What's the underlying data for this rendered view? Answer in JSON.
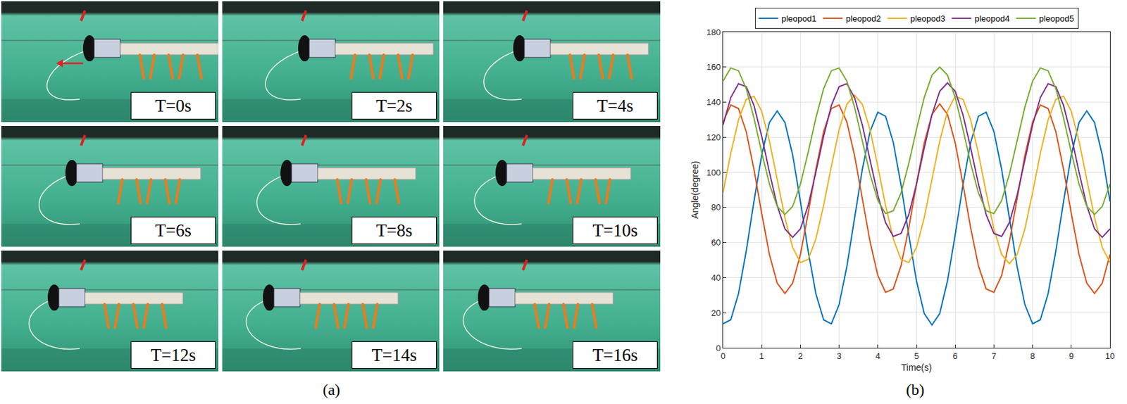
{
  "panel_a": {
    "label": "(a)",
    "frames": [
      "T=0s",
      "T=2s",
      "T=4s",
      "T=6s",
      "T=8s",
      "T=10s",
      "T=12s",
      "T=14s",
      "T=16s"
    ]
  },
  "panel_b": {
    "label": "(b)"
  },
  "chart_data": {
    "type": "line",
    "x_label": "Time(s)",
    "y_label": "Angle(degree)",
    "x": [
      0,
      0.2,
      0.4,
      0.6,
      0.8,
      1,
      1.2,
      1.4,
      1.6,
      1.8,
      2,
      2.2,
      2.4,
      2.6,
      2.8,
      3,
      3.2,
      3.4,
      3.6,
      3.8,
      4,
      4.2,
      4.4,
      4.6,
      4.8,
      5,
      5.2,
      5.4,
      5.6,
      5.8,
      6,
      6.2,
      6.4,
      6.6,
      6.8,
      7,
      7.2,
      7.4,
      7.6,
      7.8,
      8,
      8.2,
      8.4,
      8.6,
      8.8,
      9,
      9.2,
      9.4,
      9.6,
      9.8,
      10
    ],
    "series": [
      {
        "name": "pleopod1",
        "color": "#0072BD",
        "values": [
          13.7,
          16,
          30.9,
          55.2,
          83.5,
          109.9,
          128.4,
          135,
          128.4,
          109.9,
          83.5,
          55.2,
          30.9,
          16,
          13.7,
          24.7,
          46.3,
          74,
          101.7,
          123.3,
          134.3,
          132,
          117.1,
          92.8,
          64.5,
          38.1,
          19.6,
          13,
          19.6,
          38.1,
          64.5,
          92.8,
          117.1,
          132,
          134.3,
          123.3,
          101.7,
          74,
          46.3,
          24.7,
          13.7,
          16,
          30.9,
          55.2,
          83.5,
          109.9,
          128.4,
          135,
          128.4,
          109.9,
          83.5
        ]
      },
      {
        "name": "pleopod2",
        "color": "#D95319",
        "values": [
          128.7,
          138.4,
          136.4,
          123.2,
          101.7,
          76.6,
          53.2,
          36.9,
          31,
          36.9,
          53.2,
          76.6,
          101.7,
          123.2,
          136.4,
          138.4,
          128.7,
          109.5,
          85,
          60.5,
          41.3,
          31.6,
          33.6,
          46.8,
          68.3,
          93.4,
          116.8,
          133.1,
          139,
          133.1,
          116.8,
          93.4,
          68.3,
          46.8,
          33.6,
          31.6,
          41.3,
          60.5,
          85,
          109.5,
          128.7,
          138.4,
          136.4,
          123.2,
          101.7,
          76.6,
          53.2,
          36.9,
          31,
          36.9,
          53.2
        ]
      },
      {
        "name": "pleopod3",
        "color": "#EDB120",
        "values": [
          88.5,
          110.8,
          129.9,
          141.6,
          143.4,
          134.8,
          117.8,
          96,
          74.2,
          57.2,
          48.6,
          50.4,
          62.1,
          81.2,
          103.5,
          124.2,
          138.8,
          144,
          138.8,
          124.2,
          103.5,
          81.2,
          62.1,
          50.4,
          48.6,
          57.2,
          74.2,
          96,
          117.8,
          134.8,
          143.4,
          141.6,
          129.9,
          110.8,
          88.5,
          67.8,
          53.2,
          48,
          53.2,
          67.8,
          88.5,
          110.8,
          129.9,
          141.6,
          143.4,
          134.8,
          117.8,
          96,
          74.2,
          57.2,
          48.6
        ]
      },
      {
        "name": "pleopod4",
        "color": "#7E2F8E",
        "values": [
          127,
          142.6,
          150.5,
          148.8,
          138.1,
          120.6,
          100.1,
          81.1,
          67.8,
          63,
          67.8,
          81.1,
          100.1,
          120.6,
          138.1,
          148.8,
          150.5,
          142.6,
          127,
          107,
          87,
          71.4,
          63.5,
          65.2,
          75.9,
          93.4,
          113.9,
          132.9,
          146.2,
          151,
          146.2,
          132.9,
          113.9,
          93.4,
          75.9,
          65.2,
          63.5,
          71.4,
          87,
          107,
          127,
          142.6,
          150.5,
          148.8,
          138.1,
          120.6,
          100.1,
          81.1,
          67.8,
          63,
          67.8
        ]
      },
      {
        "name": "pleopod5",
        "color": "#77AC30",
        "values": [
          152,
          159.5,
          157.9,
          147.7,
          131,
          111.4,
          93.3,
          80.6,
          76,
          80.6,
          93.3,
          111.4,
          131,
          147.7,
          157.9,
          159.5,
          152,
          137.1,
          118,
          98.9,
          84,
          76.5,
          78.1,
          88.3,
          105,
          124.6,
          142.7,
          155.4,
          160,
          155.4,
          142.7,
          124.6,
          105,
          88.3,
          78.1,
          76.5,
          84,
          98.9,
          118,
          137.1,
          152,
          159.5,
          157.9,
          147.7,
          131,
          111.4,
          93.3,
          80.6,
          76,
          80.6,
          93.3
        ]
      }
    ],
    "xlim": [
      0,
      10
    ],
    "xticks": [
      0,
      1,
      2,
      3,
      4,
      5,
      6,
      7,
      8,
      9,
      10
    ],
    "ylim": [
      0,
      180
    ],
    "yticks": [
      0,
      20,
      40,
      60,
      80,
      100,
      120,
      140,
      160,
      180
    ],
    "grid": true,
    "legend": "top"
  }
}
